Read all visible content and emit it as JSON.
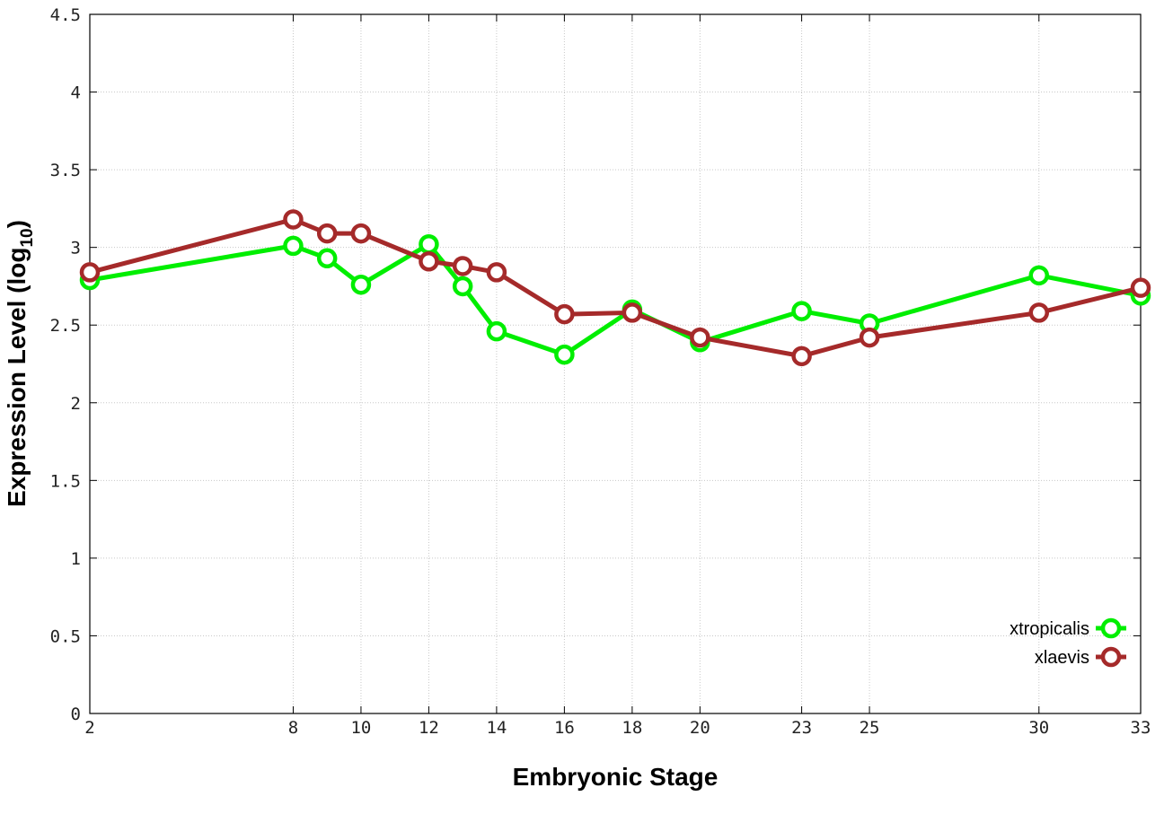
{
  "chart_data": {
    "type": "line",
    "xlabel": "Embryonic Stage",
    "ylabel": "Expression Level (log",
    "ylabel_sub": "10",
    "ylabel_close": ")",
    "x_ticks": [
      "2",
      "8",
      "10",
      "12",
      "14",
      "16",
      "18",
      "20",
      "23",
      "25",
      "30",
      "33"
    ],
    "y_ticks": [
      "0",
      "0.5",
      "1",
      "1.5",
      "2",
      "2.5",
      "3",
      "3.5",
      "4",
      "4.5"
    ],
    "xlim": [
      2,
      33
    ],
    "ylim": [
      0,
      4.5
    ],
    "grid": true,
    "legend_position": "bottom-right",
    "series": [
      {
        "name": "xtropicalis",
        "color": "#00ee00",
        "x": [
          2,
          8,
          9,
          10,
          12,
          13,
          14,
          16,
          18,
          20,
          23,
          25,
          30,
          33
        ],
        "y": [
          2.79,
          3.01,
          2.93,
          2.76,
          3.02,
          2.75,
          2.46,
          2.31,
          2.6,
          2.39,
          2.59,
          2.51,
          2.82,
          2.69
        ]
      },
      {
        "name": "xlaevis",
        "color": "#a52a2a",
        "x": [
          2,
          8,
          9,
          10,
          12,
          13,
          14,
          16,
          18,
          20,
          23,
          25,
          30,
          33
        ],
        "y": [
          2.84,
          3.18,
          3.09,
          3.09,
          2.91,
          2.88,
          2.84,
          2.57,
          2.58,
          2.42,
          2.3,
          2.42,
          2.58,
          2.74
        ]
      }
    ]
  }
}
